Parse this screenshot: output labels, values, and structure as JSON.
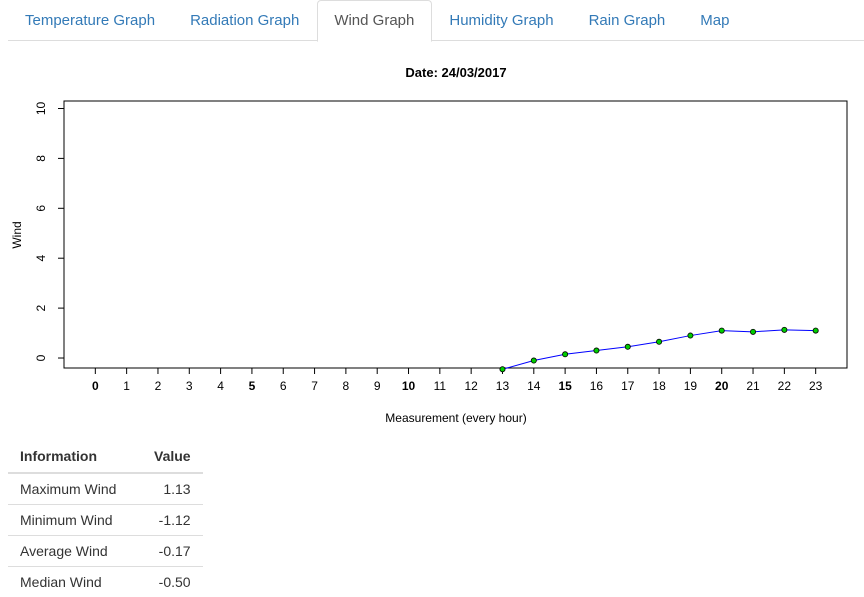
{
  "tabs": [
    {
      "label": "Temperature Graph",
      "active": false
    },
    {
      "label": "Radiation Graph",
      "active": false
    },
    {
      "label": "Wind Graph",
      "active": true
    },
    {
      "label": "Humidity Graph",
      "active": false
    },
    {
      "label": "Rain Graph",
      "active": false
    },
    {
      "label": "Map",
      "active": false
    }
  ],
  "chart_data": {
    "type": "line",
    "title": "Date:  24/03/2017",
    "xlabel": "Measurement (every hour)",
    "ylabel": "Wind",
    "x": [
      13,
      14,
      15,
      16,
      17,
      18,
      19,
      20,
      21,
      22,
      23
    ],
    "y": [
      -0.45,
      -0.1,
      0.15,
      0.3,
      0.45,
      0.65,
      0.9,
      1.1,
      1.05,
      1.13,
      1.1
    ],
    "xticks": [
      0,
      1,
      2,
      3,
      4,
      5,
      6,
      7,
      8,
      9,
      10,
      11,
      12,
      13,
      14,
      15,
      16,
      17,
      18,
      19,
      20,
      21,
      22,
      23
    ],
    "yticks": [
      0,
      2,
      4,
      6,
      8,
      10
    ],
    "xlim": [
      -1,
      24
    ],
    "ylim": [
      -0.4,
      10.3
    ],
    "line_color": "#0000ff",
    "point_color": "#00cc00",
    "grid": false
  },
  "info_table": {
    "headers": [
      "Information",
      "Value"
    ],
    "rows": [
      {
        "label": "Maximum Wind",
        "value": "1.13"
      },
      {
        "label": "Minimum Wind",
        "value": "-1.12"
      },
      {
        "label": "Average Wind",
        "value": "-0.17"
      },
      {
        "label": "Median Wind",
        "value": "-0.50"
      }
    ]
  }
}
